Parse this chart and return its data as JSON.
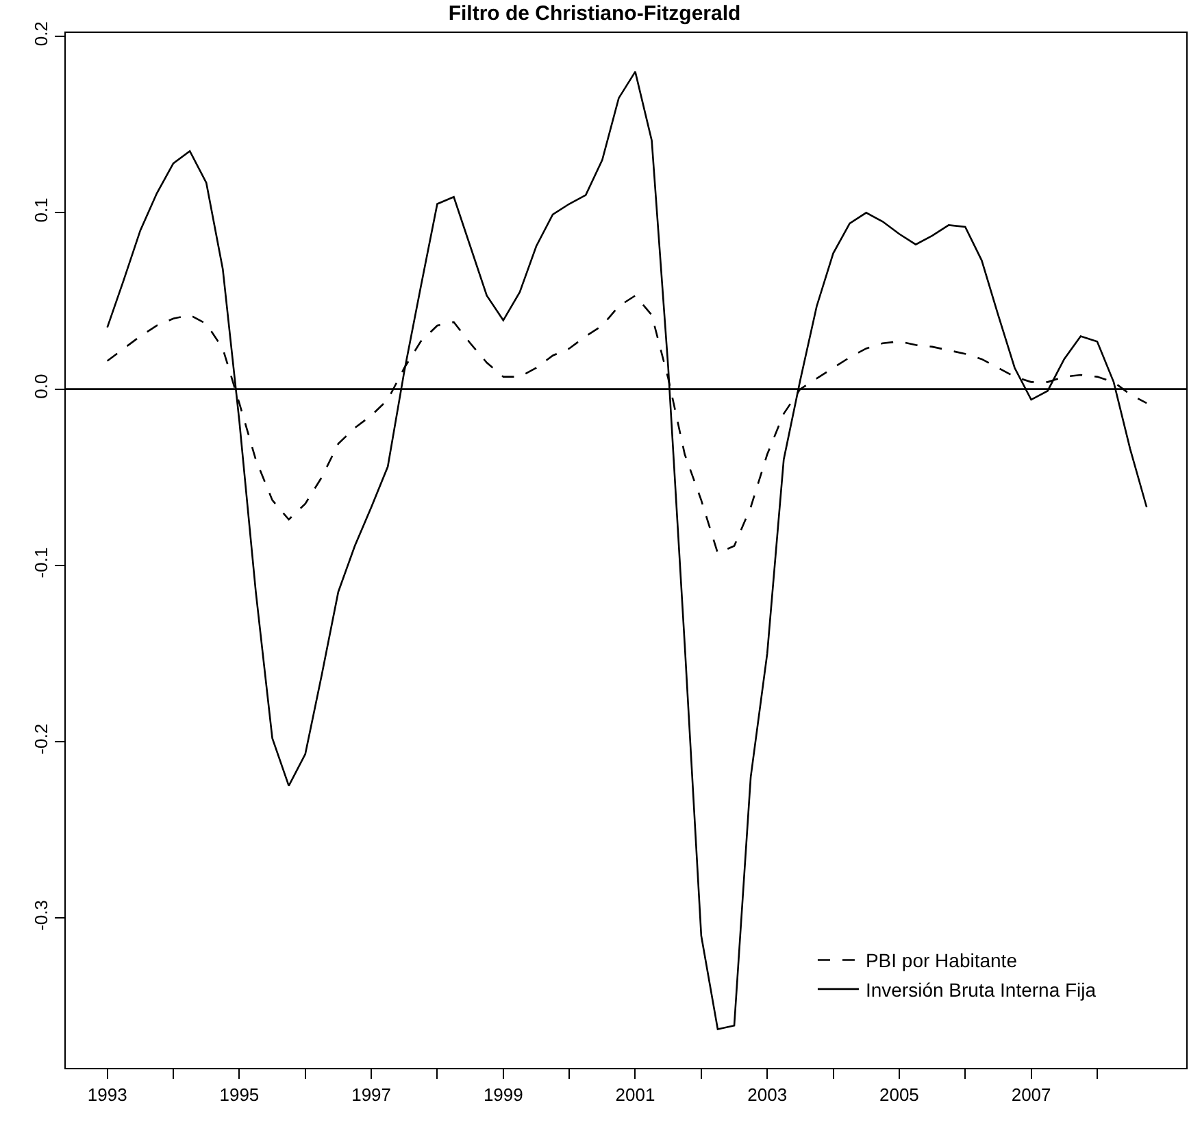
{
  "chart_data": {
    "type": "line",
    "title": "Filtro de Christiano-Fitzgerald",
    "x": [
      1993,
      1993.25,
      1993.5,
      1993.75,
      1994,
      1994.25,
      1994.5,
      1994.75,
      1995,
      1995.25,
      1995.5,
      1995.75,
      1996,
      1996.25,
      1996.5,
      1996.75,
      1997,
      1997.25,
      1997.5,
      1997.75,
      1998,
      1998.25,
      1998.5,
      1998.75,
      1999,
      1999.25,
      1999.5,
      1999.75,
      2000,
      2000.25,
      2000.5,
      2000.75,
      2001,
      2001.25,
      2001.5,
      2001.75,
      2002,
      2002.25,
      2002.5,
      2002.75,
      2003,
      2003.25,
      2003.5,
      2003.75,
      2004,
      2004.25,
      2004.5,
      2004.75,
      2005,
      2005.25,
      2005.5,
      2005.75,
      2006,
      2006.25,
      2006.5,
      2006.75,
      2007,
      2007.25,
      2007.5,
      2007.75,
      2008,
      2008.25,
      2008.5,
      2008.75
    ],
    "series": [
      {
        "name": "PBI por Habitante",
        "color": "#000000",
        "line_style": "dashed",
        "values": [
          0.016,
          0.023,
          0.03,
          0.036,
          0.04,
          0.042,
          0.037,
          0.023,
          -0.008,
          -0.04,
          -0.063,
          -0.074,
          -0.065,
          -0.05,
          -0.031,
          -0.022,
          -0.015,
          -0.006,
          0.012,
          0.027,
          0.036,
          0.038,
          0.026,
          0.015,
          0.007,
          0.007,
          0.012,
          0.019,
          0.023,
          0.03,
          0.036,
          0.047,
          0.053,
          0.042,
          0.006,
          -0.037,
          -0.063,
          -0.093,
          -0.089,
          -0.067,
          -0.037,
          -0.014,
          0.0,
          0.006,
          0.012,
          0.018,
          0.023,
          0.026,
          0.027,
          0.025,
          0.024,
          0.022,
          0.02,
          0.017,
          0.012,
          0.007,
          0.004,
          0.004,
          0.007,
          0.008,
          0.007,
          0.004,
          -0.003,
          -0.008
        ]
      },
      {
        "name": "Inversión Bruta Interna Fija",
        "color": "#000000",
        "line_style": "solid",
        "values": [
          0.035,
          0.062,
          0.09,
          0.111,
          0.128,
          0.135,
          0.117,
          0.068,
          -0.018,
          -0.115,
          -0.198,
          -0.225,
          -0.207,
          -0.162,
          -0.115,
          -0.089,
          -0.067,
          -0.044,
          0.01,
          0.058,
          0.105,
          0.109,
          0.081,
          0.053,
          0.039,
          0.055,
          0.081,
          0.099,
          0.105,
          0.11,
          0.13,
          0.165,
          0.18,
          0.141,
          0.012,
          -0.145,
          -0.31,
          -0.363,
          -0.361,
          -0.22,
          -0.15,
          -0.04,
          0.005,
          0.047,
          0.077,
          0.094,
          0.1,
          0.095,
          0.088,
          0.082,
          0.087,
          0.093,
          0.092,
          0.073,
          0.042,
          0.012,
          -0.006,
          -0.001,
          0.017,
          0.03,
          0.027,
          0.004,
          -0.034,
          -0.067
        ]
      }
    ],
    "xlim": [
      1992.37,
      2009.35
    ],
    "xticks": [
      1993,
      {
        "value": 1994,
        "label": null
      },
      1995,
      {
        "value": 1996,
        "label": null
      },
      1997,
      {
        "value": 1998,
        "label": null
      },
      1999,
      {
        "value": 2000,
        "label": null
      },
      2001,
      {
        "value": 2002,
        "label": null
      },
      2003,
      {
        "value": 2004,
        "label": null
      },
      2005,
      {
        "value": 2006,
        "label": null
      },
      2007,
      {
        "value": 2008,
        "label": null
      }
    ],
    "ylim": [
      -0.385,
      0.202
    ],
    "yticks": [
      {
        "value": -0.3,
        "label": "-0.3"
      },
      {
        "value": -0.2,
        "label": "-0.2"
      },
      {
        "value": -0.1,
        "label": "-0.1"
      },
      {
        "value": 0,
        "label": "0.0"
      },
      {
        "value": 0.1,
        "label": "0.1"
      },
      {
        "value": 0.2,
        "label": "0.2"
      }
    ],
    "ref_lines": [
      {
        "axis": "y",
        "value": 0,
        "color": "#000000",
        "line_style": "solid"
      }
    ],
    "grid": false,
    "legend": "bottom right",
    "marker": "none"
  }
}
